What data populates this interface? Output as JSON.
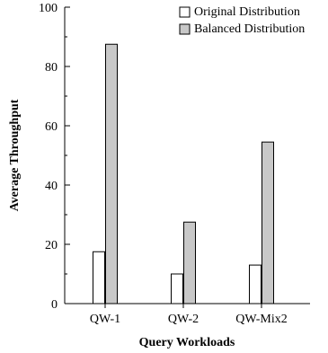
{
  "chart_data": {
    "type": "bar",
    "title": "",
    "xlabel": "Query Workloads",
    "ylabel": "Average Throughput",
    "ylim": [
      0,
      100
    ],
    "yticks": [
      0,
      20,
      40,
      60,
      80,
      100
    ],
    "yticks_labels": [
      "0",
      "20",
      "40",
      "60",
      "80",
      "100"
    ],
    "categories": [
      "QW-1",
      "QW-2",
      "QW-Mix2"
    ],
    "series": [
      {
        "name": "Original Distribution",
        "values": [
          17.5,
          10,
          13
        ],
        "color": "#ffffff"
      },
      {
        "name": "Balanced Distribution",
        "values": [
          87.5,
          27.5,
          54.5
        ],
        "color": "#c8c8c8"
      }
    ],
    "legend_position": "top-right",
    "grid": false
  }
}
